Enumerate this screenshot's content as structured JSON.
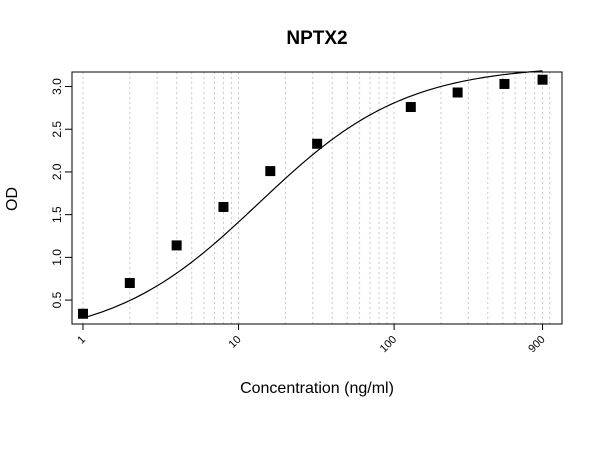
{
  "chart_data": {
    "type": "scatter",
    "title": "NPTX2",
    "xlabel": "Concentration (ng/ml)",
    "ylabel": "OD",
    "x_scale": "log",
    "xlim": [
      0.85,
      1200
    ],
    "ylim": [
      0.22,
      3.17
    ],
    "x_ticks": [
      1,
      10,
      100,
      900
    ],
    "x_tick_labels": [
      "1",
      "10",
      "100",
      "900"
    ],
    "y_ticks": [
      0.5,
      1.0,
      1.5,
      2.0,
      2.5,
      3.0
    ],
    "y_tick_labels": [
      "0.5",
      "1.0",
      "1.5",
      "2.0",
      "2.5",
      "3.0"
    ],
    "grid": "vertical dotted at log minor ticks",
    "series": [
      {
        "marker": "filled-square",
        "x": [
          1,
          2,
          4,
          8,
          16,
          32,
          128,
          256,
          512,
          900
        ],
        "y": [
          0.34,
          0.7,
          1.14,
          1.59,
          2.01,
          2.33,
          2.76,
          2.93,
          3.03,
          3.08
        ]
      }
    ],
    "fit_curve": {
      "type": "4PL",
      "bottom": 0.02,
      "top": 3.25,
      "ec50": 13.5,
      "hill": 0.92
    }
  }
}
